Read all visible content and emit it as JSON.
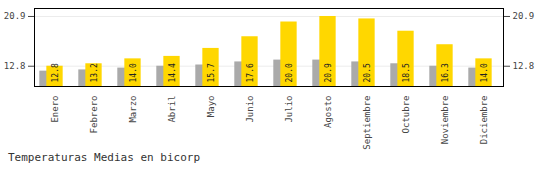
{
  "chart_data": {
    "type": "bar",
    "title": "Temperaturas Medias en bicorp",
    "categories": [
      "Enero",
      "Febrero",
      "Marzo",
      "Abril",
      "Mayo",
      "Junio",
      "Julio",
      "Agosto",
      "Septiembre",
      "Octubre",
      "Noviembre",
      "Diciembre"
    ],
    "series": [
      {
        "color": "#AAAAAA",
        "values": [
          12.0,
          12.2,
          12.5,
          12.8,
          13.0,
          13.5,
          13.8,
          13.8,
          13.5,
          13.2,
          12.8,
          12.5
        ]
      },
      {
        "color": "#FFD700",
        "values": [
          12.8,
          13.2,
          14.0,
          14.4,
          15.7,
          17.6,
          20.0,
          20.9,
          20.5,
          18.5,
          16.3,
          14.0
        ],
        "value_labels": [
          "12.8",
          "13.2",
          "14.0",
          "14.4",
          "15.7",
          "17.6",
          "20.0",
          "20.9",
          "20.5",
          "18.5",
          "16.3",
          "14.0"
        ],
        "data_labels": true
      }
    ],
    "ylim": [
      9.5,
      22.2
    ],
    "yticks": [
      12.8,
      20.9
    ],
    "grid": true
  }
}
